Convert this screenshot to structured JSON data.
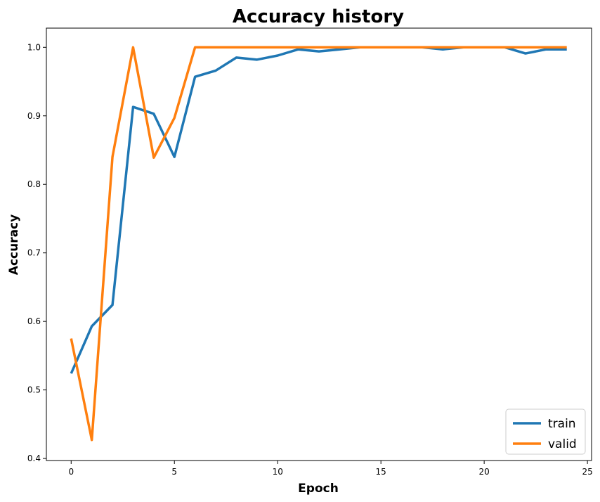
{
  "chart_data": {
    "type": "line",
    "title": "Accuracy history",
    "xlabel": "Epoch",
    "ylabel": "Accuracy",
    "xlim": [
      -1.2,
      25.2
    ],
    "ylim": [
      0.397,
      1.028
    ],
    "xticks": [
      0,
      5,
      10,
      15,
      20,
      25
    ],
    "yticks": [
      0.4,
      0.5,
      0.6,
      0.7,
      0.8,
      0.9,
      1.0
    ],
    "grid": false,
    "legend_position": "bottom-right",
    "x": [
      0,
      1,
      2,
      3,
      4,
      5,
      6,
      7,
      8,
      9,
      10,
      11,
      12,
      13,
      14,
      15,
      16,
      17,
      18,
      19,
      20,
      21,
      22,
      23,
      24
    ],
    "series": [
      {
        "name": "train",
        "color": "#1f77b4",
        "values": [
          0.524,
          0.593,
          0.624,
          0.913,
          0.903,
          0.84,
          0.957,
          0.966,
          0.985,
          0.982,
          0.988,
          0.997,
          0.994,
          0.997,
          1.0,
          1.0,
          1.0,
          1.0,
          0.997,
          1.0,
          1.0,
          1.0,
          0.991,
          0.997,
          0.997
        ]
      },
      {
        "name": "valid",
        "color": "#ff7f0e",
        "values": [
          0.575,
          0.427,
          0.84,
          1.0,
          0.839,
          0.897,
          1.0,
          1.0,
          1.0,
          1.0,
          1.0,
          1.0,
          1.0,
          1.0,
          1.0,
          1.0,
          1.0,
          1.0,
          1.0,
          1.0,
          1.0,
          1.0,
          1.0,
          1.0,
          1.0
        ]
      }
    ]
  }
}
